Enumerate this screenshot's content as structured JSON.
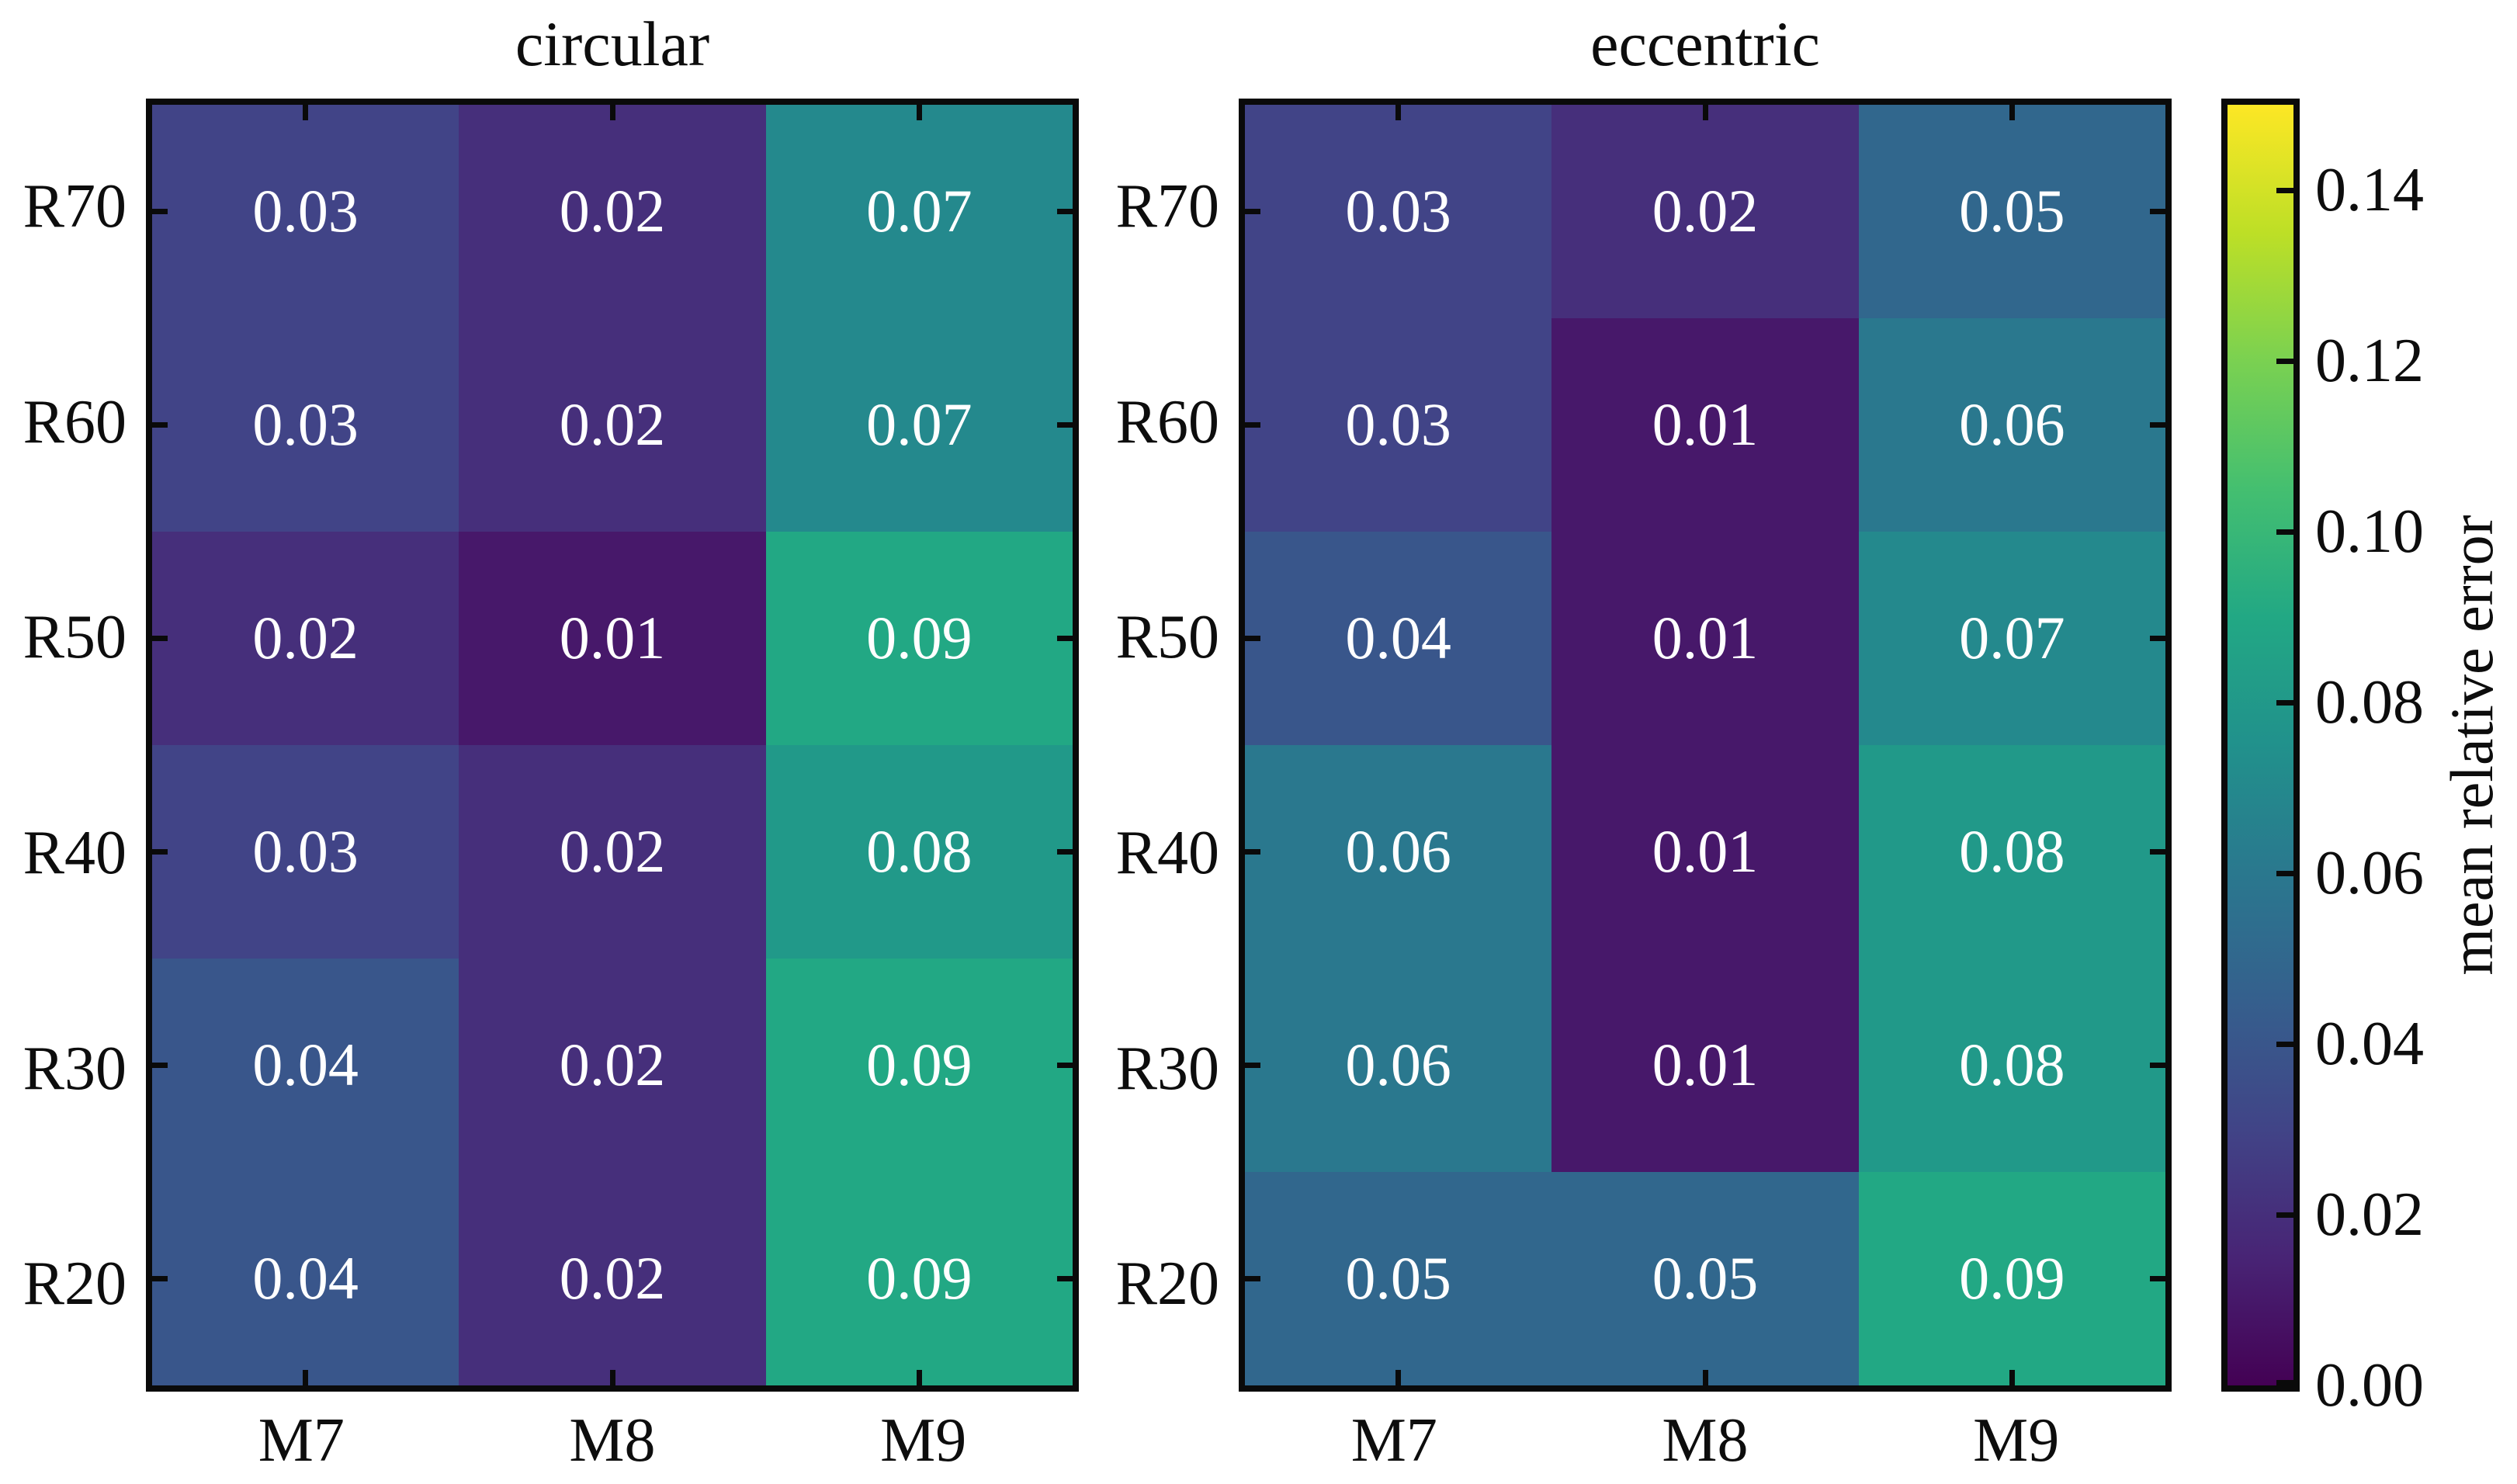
{
  "chart_data": [
    {
      "type": "heatmap",
      "title": "circular",
      "x_labels": [
        "M7",
        "M8",
        "M9"
      ],
      "y_labels": [
        "R70",
        "R60",
        "R50",
        "R40",
        "R30",
        "R20"
      ],
      "values": [
        [
          0.03,
          0.02,
          0.07
        ],
        [
          0.03,
          0.02,
          0.07
        ],
        [
          0.02,
          0.01,
          0.09
        ],
        [
          0.03,
          0.02,
          0.08
        ],
        [
          0.04,
          0.02,
          0.09
        ],
        [
          0.04,
          0.02,
          0.09
        ]
      ],
      "vmin": 0,
      "vmax": 0.15,
      "colormap": "viridis",
      "cell_text_color": "#ffffff",
      "annotations_decimals": 2
    },
    {
      "type": "heatmap",
      "title": "eccentric",
      "x_labels": [
        "M7",
        "M8",
        "M9"
      ],
      "y_labels": [
        "R70",
        "R60",
        "R50",
        "R40",
        "R30",
        "R20"
      ],
      "values": [
        [
          0.03,
          0.02,
          0.05
        ],
        [
          0.03,
          0.01,
          0.06
        ],
        [
          0.04,
          0.01,
          0.07
        ],
        [
          0.06,
          0.01,
          0.08
        ],
        [
          0.06,
          0.01,
          0.08
        ],
        [
          0.05,
          0.05,
          0.09
        ]
      ],
      "vmin": 0,
      "vmax": 0.15,
      "colormap": "viridis",
      "cell_text_color": "#ffffff",
      "annotations_decimals": 2
    }
  ],
  "colorbar": {
    "label": "mean relative error",
    "tick_labels": [
      "0.00",
      "0.02",
      "0.04",
      "0.06",
      "0.08",
      "0.10",
      "0.12",
      "0.14"
    ],
    "vmin": 0,
    "vmax": 0.15,
    "colormap": "viridis",
    "colormap_stops": [
      "#440154",
      "#482475",
      "#414487",
      "#355f8d",
      "#2a788e",
      "#21918c",
      "#22a884",
      "#44bf70",
      "#7ad151",
      "#bddf26",
      "#fde725"
    ]
  },
  "style": {
    "frame_color": "#0a0a0a",
    "background_color": "#ffffff",
    "text_color": "#0d0d0d"
  }
}
